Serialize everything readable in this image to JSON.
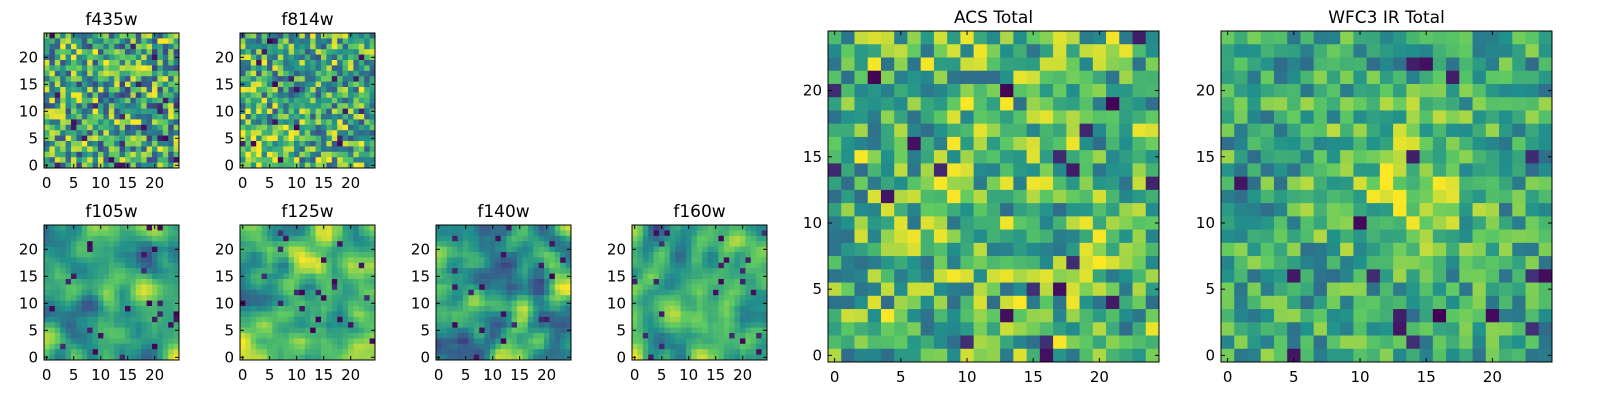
{
  "figure": {
    "background": "#ffffff",
    "colormap": "viridis",
    "colormap_stops": [
      "#440154",
      "#3b528b",
      "#21918c",
      "#5ec962",
      "#fde725"
    ]
  },
  "chart_data": [
    {
      "type": "heatmap",
      "title": "f435w",
      "xlabel": "",
      "ylabel": "",
      "grid_size": 25,
      "xlim": [
        0,
        24
      ],
      "ylim": [
        0,
        24
      ],
      "xticks": [
        "0",
        "5",
        "10",
        "15",
        "20"
      ],
      "yticks": [
        "0",
        "5",
        "10",
        "15",
        "20"
      ],
      "grid": false,
      "texture": "fine-noise"
    },
    {
      "type": "heatmap",
      "title": "f814w",
      "xlabel": "",
      "ylabel": "",
      "grid_size": 25,
      "xlim": [
        0,
        24
      ],
      "ylim": [
        0,
        24
      ],
      "xticks": [
        "0",
        "5",
        "10",
        "15",
        "20"
      ],
      "yticks": [
        "0",
        "5",
        "10",
        "15",
        "20"
      ],
      "grid": false,
      "texture": "fine-noise-bright-bottom-left"
    },
    {
      "type": "heatmap",
      "title": "f105w",
      "xlabel": "",
      "ylabel": "",
      "grid_size": 25,
      "xlim": [
        0,
        24
      ],
      "ylim": [
        0,
        24
      ],
      "xticks": [
        "0",
        "5",
        "10",
        "15",
        "20"
      ],
      "yticks": [
        "0",
        "5",
        "10",
        "15",
        "20"
      ],
      "grid": false,
      "texture": "smooth-blobs"
    },
    {
      "type": "heatmap",
      "title": "f125w",
      "xlabel": "",
      "ylabel": "",
      "grid_size": 25,
      "xlim": [
        0,
        24
      ],
      "ylim": [
        0,
        24
      ],
      "xticks": [
        "0",
        "5",
        "10",
        "15",
        "20"
      ],
      "yticks": [
        "0",
        "5",
        "10",
        "15",
        "20"
      ],
      "grid": false,
      "texture": "smooth-blobs-bright"
    },
    {
      "type": "heatmap",
      "title": "f140w",
      "xlabel": "",
      "ylabel": "",
      "grid_size": 25,
      "xlim": [
        0,
        24
      ],
      "ylim": [
        0,
        24
      ],
      "xticks": [
        "0",
        "5",
        "10",
        "15",
        "20"
      ],
      "yticks": [
        "0",
        "5",
        "10",
        "15",
        "20"
      ],
      "grid": false,
      "texture": "smooth-blobs-dark-spots"
    },
    {
      "type": "heatmap",
      "title": "f160w",
      "xlabel": "",
      "ylabel": "",
      "grid_size": 25,
      "xlim": [
        0,
        24
      ],
      "ylim": [
        0,
        24
      ],
      "xticks": [
        "0",
        "5",
        "10",
        "15",
        "20"
      ],
      "yticks": [
        "0",
        "5",
        "10",
        "15",
        "20"
      ],
      "grid": false,
      "texture": "smooth-blobs-dark-spots"
    },
    {
      "type": "heatmap",
      "title": "ACS Total",
      "xlabel": "",
      "ylabel": "",
      "grid_size": 25,
      "xlim": [
        0,
        24
      ],
      "ylim": [
        0,
        24
      ],
      "xticks": [
        "0",
        "5",
        "10",
        "15",
        "20"
      ],
      "yticks": [
        "0",
        "5",
        "10",
        "15",
        "20"
      ],
      "grid": false,
      "texture": "coarse-noise-bright"
    },
    {
      "type": "heatmap",
      "title": "WFC3 IR Total",
      "xlabel": "",
      "ylabel": "",
      "grid_size": 25,
      "xlim": [
        0,
        24
      ],
      "ylim": [
        0,
        24
      ],
      "xticks": [
        "0",
        "5",
        "10",
        "15",
        "20"
      ],
      "yticks": [
        "0",
        "5",
        "10",
        "15",
        "20"
      ],
      "grid": false,
      "texture": "coarse-noise-central-bright"
    }
  ]
}
